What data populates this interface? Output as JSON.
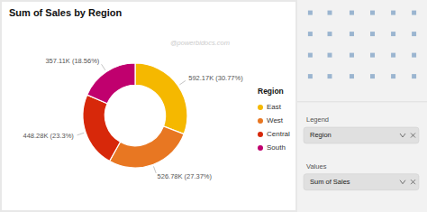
{
  "chart_data": {
    "type": "donut",
    "title": "Sum of Sales by Region",
    "categories": [
      "East",
      "West",
      "Central",
      "South"
    ],
    "values": [
      592.17,
      526.78,
      448.28,
      357.11
    ],
    "value_labels": [
      "592.17K (30.77%)",
      "526.78K (27.37%)",
      "448.28K (23.3%)",
      "357.11K (18.56%)"
    ],
    "data_labels": true,
    "colors": [
      "#F5B800",
      "#E87722",
      "#D7280A",
      "#C0006E"
    ],
    "legend": "right",
    "legend_title": "Region",
    "annotations": [
      "@powerbidocs.com"
    ],
    "field_wells": [
      {
        "header": "Legend",
        "field": "Region"
      },
      {
        "header": "Values",
        "field": "Sum of Sales"
      }
    ]
  }
}
